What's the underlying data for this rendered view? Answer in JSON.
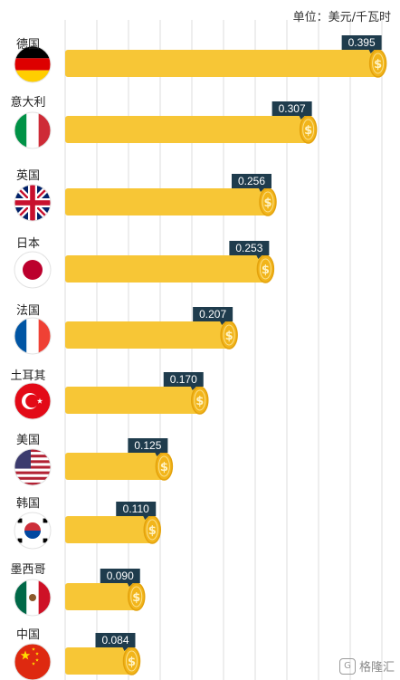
{
  "unit_label": "单位：美元/千瓦时",
  "watermark": "格隆汇",
  "watermark_logo": "G",
  "colors": {
    "bar": "#F7C636",
    "coin": "#F2B51B",
    "coin_ring": "#E3A20C",
    "label_bg": "#1F3C4D",
    "label_text": "#ffffff",
    "grid": "#dddddd"
  },
  "chart_data": {
    "type": "bar",
    "orientation": "horizontal",
    "title": "",
    "xlabel": "",
    "ylabel": "",
    "unit": "美元/千瓦时",
    "grid": true,
    "categories": [
      "德国",
      "意大利",
      "英国",
      "日本",
      "法国",
      "土耳其",
      "美国",
      "韩国",
      "墨西哥",
      "中国"
    ],
    "values": [
      0.395,
      0.307,
      0.256,
      0.253,
      0.207,
      0.17,
      0.125,
      0.11,
      0.09,
      0.084
    ],
    "value_labels": [
      "0.395",
      "0.307",
      "0.256",
      "0.253",
      "0.207",
      "0.170",
      "0.125",
      "0.110",
      "0.090",
      "0.084"
    ],
    "flags": [
      "germany-flag",
      "italy-flag",
      "uk-flag",
      "japan-flag",
      "france-flag",
      "turkey-flag",
      "usa-flag",
      "korea-flag",
      "mexico-flag",
      "china-flag"
    ],
    "coin_symbol": "$",
    "xlim": [
      0,
      0.4
    ]
  }
}
